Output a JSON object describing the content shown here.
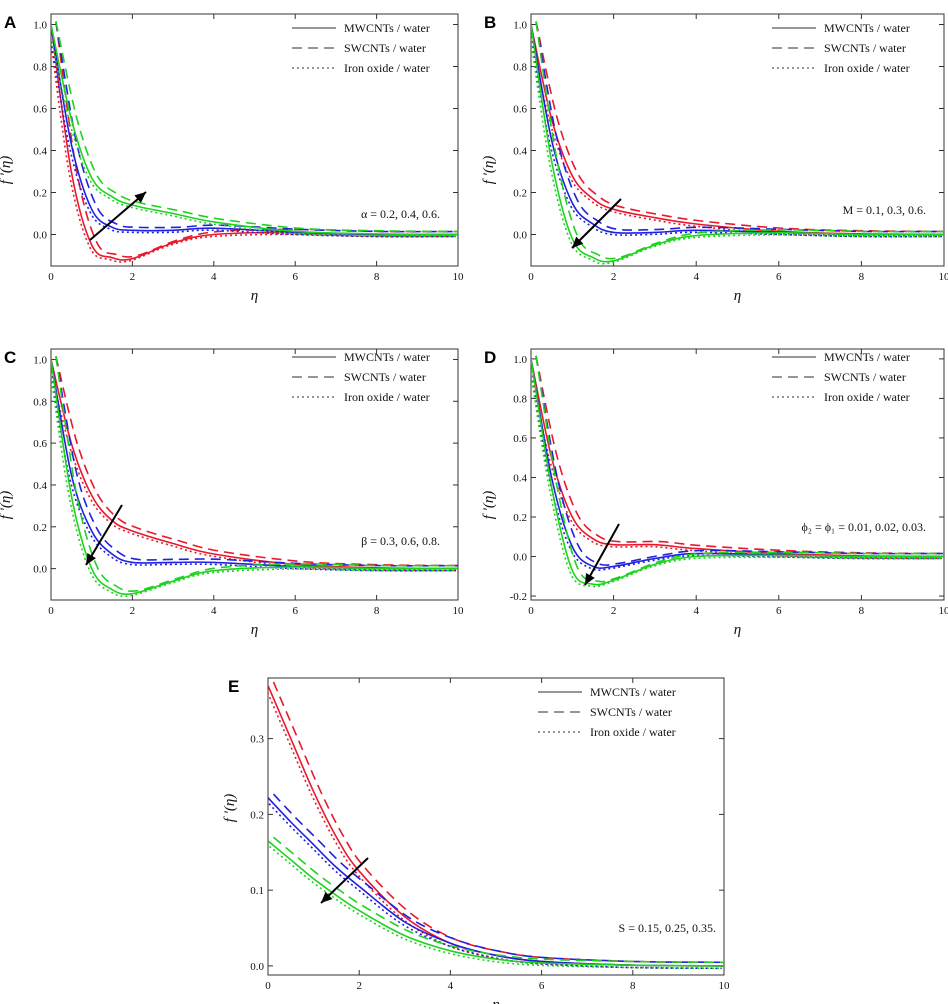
{
  "colors": {
    "red": "#e8192c",
    "blue": "#2020e0",
    "green": "#1fd21f",
    "legend_line": "#888888",
    "frame": "#333333",
    "arrow": "#000000"
  },
  "legend": [
    {
      "label": "MWCNTs / water",
      "style": "solid"
    },
    {
      "label": "SWCNTs / water",
      "style": "dashed"
    },
    {
      "label": "Iron oxide / water",
      "style": "dotted"
    }
  ],
  "chart_data": [
    {
      "panel": "A",
      "type": "line",
      "title": "",
      "xlabel": "η",
      "ylabel": "f '(η)",
      "xlim": [
        0,
        10
      ],
      "ylim": [
        -0.15,
        1.05
      ],
      "xticks": [
        0,
        2,
        4,
        6,
        8,
        10
      ],
      "xtick_labels": [
        "0",
        "2",
        "4",
        "6",
        "8",
        "10"
      ],
      "yticks": [
        0,
        0.2,
        0.4,
        0.6,
        0.8,
        1.0
      ],
      "ytick_labels": [
        "0.0",
        "0.2",
        "0.4",
        "0.6",
        "0.8",
        "1.0"
      ],
      "annotation": "α = 0.2, 0.4, 0.6.",
      "arrow_direction": "increasing",
      "series": [
        {
          "name": "α = 0.2",
          "color": "red",
          "x": [
            0,
            0.5,
            1,
            1.5,
            2,
            3,
            4,
            6,
            8,
            10
          ],
          "y": [
            1.0,
            0.3,
            -0.05,
            -0.11,
            -0.115,
            -0.04,
            0.0,
            0.01,
            0.0,
            0.0
          ]
        },
        {
          "name": "α = 0.4",
          "color": "blue",
          "x": [
            0,
            0.5,
            1,
            1.5,
            2,
            3,
            4,
            6,
            8,
            10
          ],
          "y": [
            1.0,
            0.43,
            0.12,
            0.035,
            0.02,
            0.02,
            0.03,
            0.01,
            0.0,
            0.0
          ]
        },
        {
          "name": "α = 0.6",
          "color": "green",
          "x": [
            0,
            0.5,
            1,
            1.5,
            2,
            3,
            4,
            6,
            8,
            10
          ],
          "y": [
            1.0,
            0.55,
            0.27,
            0.18,
            0.14,
            0.1,
            0.06,
            0.015,
            0.003,
            0.0
          ]
        }
      ]
    },
    {
      "panel": "B",
      "type": "line",
      "title": "",
      "xlabel": "η",
      "ylabel": "f '(η)",
      "xlim": [
        0,
        10
      ],
      "ylim": [
        -0.15,
        1.05
      ],
      "xticks": [
        0,
        2,
        4,
        6,
        8,
        10
      ],
      "xtick_labels": [
        "0",
        "2",
        "4",
        "6",
        "8",
        "10"
      ],
      "yticks": [
        0,
        0.2,
        0.4,
        0.6,
        0.8,
        1.0
      ],
      "ytick_labels": [
        "0.0",
        "0.2",
        "0.4",
        "0.6",
        "0.8",
        "1.0"
      ],
      "annotation": "M = 0.1, 0.3, 0.6.",
      "arrow_direction": "decreasing",
      "series": [
        {
          "name": "M = 0.1",
          "color": "red",
          "x": [
            0,
            0.5,
            1,
            1.5,
            2,
            3,
            4,
            6,
            8,
            10
          ],
          "y": [
            1.0,
            0.55,
            0.28,
            0.17,
            0.12,
            0.08,
            0.05,
            0.015,
            0.003,
            0.0
          ]
        },
        {
          "name": "M = 0.3",
          "color": "blue",
          "x": [
            0,
            0.5,
            1,
            1.5,
            2,
            3,
            4,
            6,
            8,
            10
          ],
          "y": [
            1.0,
            0.45,
            0.15,
            0.05,
            0.01,
            0.01,
            0.02,
            0.01,
            0.0,
            0.0
          ]
        },
        {
          "name": "M = 0.6",
          "color": "green",
          "x": [
            0,
            0.5,
            1,
            1.5,
            2,
            3,
            4,
            6,
            8,
            10
          ],
          "y": [
            1.0,
            0.35,
            -0.02,
            -0.11,
            -0.125,
            -0.05,
            -0.005,
            0.008,
            0.0,
            0.0
          ]
        }
      ]
    },
    {
      "panel": "C",
      "type": "line",
      "title": "",
      "xlabel": "η",
      "ylabel": "f '(η)",
      "xlim": [
        0,
        10
      ],
      "ylim": [
        -0.15,
        1.05
      ],
      "xticks": [
        0,
        2,
        4,
        6,
        8,
        10
      ],
      "xtick_labels": [
        "0",
        "2",
        "4",
        "6",
        "8",
        "10"
      ],
      "yticks": [
        0,
        0.2,
        0.4,
        0.6,
        0.8,
        1.0
      ],
      "ytick_labels": [
        "0.0",
        "0.2",
        "0.4",
        "0.6",
        "0.8",
        "1.0"
      ],
      "annotation": "β = 0.3, 0.6, 0.8.",
      "arrow_direction": "decreasing",
      "series": [
        {
          "name": "β = 0.3",
          "color": "red",
          "x": [
            0,
            0.5,
            1,
            1.5,
            2,
            3,
            4,
            6,
            8,
            10
          ],
          "y": [
            1.0,
            0.6,
            0.35,
            0.23,
            0.18,
            0.12,
            0.07,
            0.02,
            0.004,
            0.0
          ]
        },
        {
          "name": "β = 0.6",
          "color": "blue",
          "x": [
            0,
            0.5,
            1,
            1.5,
            2,
            3,
            4,
            6,
            8,
            10
          ],
          "y": [
            1.0,
            0.45,
            0.18,
            0.07,
            0.03,
            0.03,
            0.03,
            0.01,
            0.0,
            0.0
          ]
        },
        {
          "name": "β = 0.8",
          "color": "green",
          "x": [
            0,
            0.5,
            1,
            1.5,
            2,
            3,
            4,
            6,
            8,
            10
          ],
          "y": [
            1.0,
            0.35,
            0.0,
            -0.1,
            -0.12,
            -0.06,
            -0.01,
            0.008,
            0.0,
            0.0
          ]
        }
      ]
    },
    {
      "panel": "D",
      "type": "line",
      "title": "",
      "xlabel": "η",
      "ylabel": "f '(η)",
      "xlim": [
        0,
        10
      ],
      "ylim": [
        -0.22,
        1.05
      ],
      "xticks": [
        0,
        2,
        4,
        6,
        8,
        10
      ],
      "xtick_labels": [
        "0",
        "2",
        "4",
        "6",
        "8",
        "10"
      ],
      "yticks": [
        -0.2,
        0,
        0.2,
        0.4,
        0.6,
        0.8,
        1.0
      ],
      "ytick_labels": [
        "-0.2",
        "0.0",
        "0.2",
        "0.4",
        "0.6",
        "0.8",
        "1.0"
      ],
      "annotation": "ϕ₂ = ϕ₁ = 0.01, 0.02, 0.03.",
      "arrow_direction": "decreasing",
      "series": [
        {
          "name": "ϕ = 0.01",
          "color": "red",
          "x": [
            0,
            0.5,
            1,
            1.5,
            2,
            3,
            4,
            6,
            8,
            10
          ],
          "y": [
            1.0,
            0.5,
            0.2,
            0.09,
            0.06,
            0.06,
            0.04,
            0.015,
            0.003,
            0.0
          ]
        },
        {
          "name": "ϕ = 0.02",
          "color": "blue",
          "x": [
            0,
            0.5,
            1,
            1.5,
            2,
            3,
            4,
            6,
            8,
            10
          ],
          "y": [
            1.0,
            0.4,
            0.05,
            -0.05,
            -0.05,
            -0.01,
            0.015,
            0.008,
            0.0,
            0.0
          ]
        },
        {
          "name": "ϕ = 0.03",
          "color": "green",
          "x": [
            0,
            0.5,
            1,
            1.5,
            2,
            3,
            4,
            6,
            8,
            10
          ],
          "y": [
            1.0,
            0.35,
            -0.07,
            -0.14,
            -0.12,
            -0.04,
            0.0,
            0.006,
            0.0,
            0.0
          ]
        }
      ]
    },
    {
      "panel": "E",
      "type": "line",
      "title": "",
      "xlabel": "η",
      "ylabel": "f '(η)",
      "xlim": [
        0,
        10
      ],
      "ylim": [
        -0.012,
        0.38
      ],
      "xticks": [
        0,
        2,
        4,
        6,
        8,
        10
      ],
      "xtick_labels": [
        "0",
        "2",
        "4",
        "6",
        "8",
        "10"
      ],
      "yticks": [
        0,
        0.1,
        0.2,
        0.3
      ],
      "ytick_labels": [
        "0.0",
        "0.1",
        "0.2",
        "0.3"
      ],
      "annotation": "S = 0.15, 0.25, 0.35.",
      "arrow_direction": "decreasing",
      "series": [
        {
          "name": "S = 0.15",
          "color": "red",
          "x": [
            0,
            0.5,
            1,
            1.5,
            2,
            3,
            4,
            5,
            6,
            8,
            10
          ],
          "y": [
            0.37,
            0.3,
            0.23,
            0.17,
            0.125,
            0.065,
            0.03,
            0.014,
            0.006,
            0.001,
            0.0
          ]
        },
        {
          "name": "S = 0.25",
          "color": "blue",
          "x": [
            0,
            0.5,
            1,
            1.5,
            2,
            3,
            4,
            5,
            6,
            8,
            10
          ],
          "y": [
            0.222,
            0.19,
            0.16,
            0.13,
            0.105,
            0.058,
            0.03,
            0.014,
            0.006,
            0.001,
            0.0
          ]
        },
        {
          "name": "S = 0.35",
          "color": "green",
          "x": [
            0,
            0.5,
            1,
            1.5,
            2,
            3,
            4,
            5,
            6,
            8,
            10
          ],
          "y": [
            0.165,
            0.14,
            0.115,
            0.093,
            0.073,
            0.04,
            0.02,
            0.009,
            0.004,
            0.001,
            0.0
          ]
        }
      ]
    }
  ]
}
